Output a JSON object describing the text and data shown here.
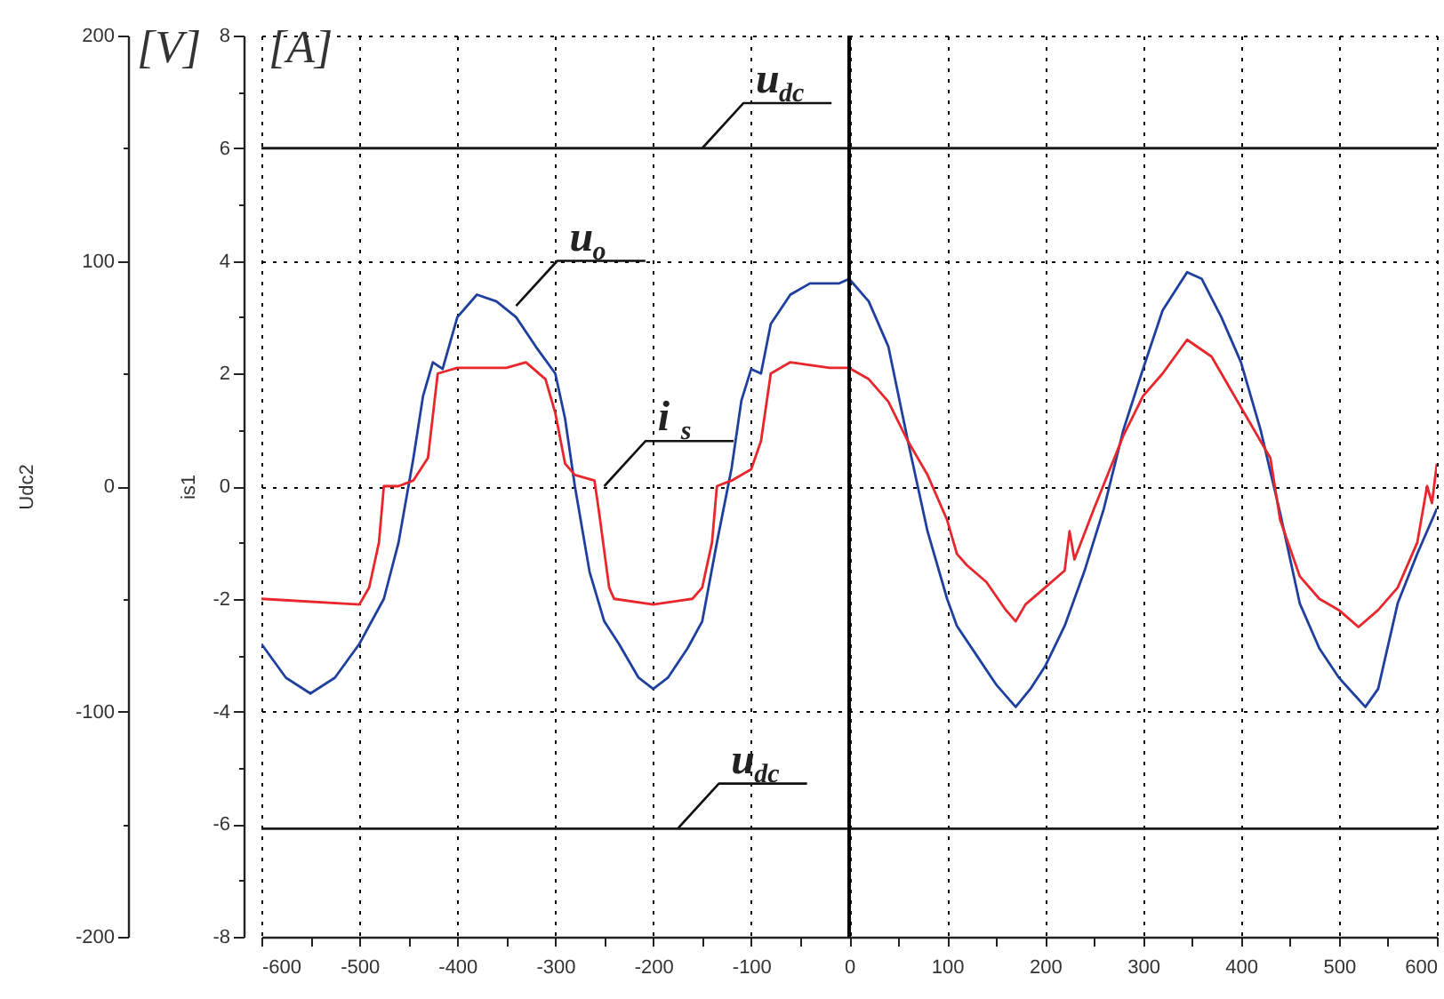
{
  "chart_data": {
    "type": "line",
    "xlim": [
      -600,
      600
    ],
    "xticks": [
      -600,
      {
        "value": -550,
        "label": null
      },
      -500,
      {
        "value": -450,
        "label": null
      },
      -400,
      {
        "value": -350,
        "label": null
      },
      -300,
      {
        "value": -250,
        "label": null
      },
      -200,
      {
        "value": -150,
        "label": null
      },
      -100,
      {
        "value": -50,
        "label": null
      },
      0,
      {
        "value": 50,
        "label": null
      },
      100,
      {
        "value": 150,
        "label": null
      },
      200,
      {
        "value": 250,
        "label": null
      },
      300,
      {
        "value": 350,
        "label": null
      },
      400,
      {
        "value": 450,
        "label": null
      },
      500,
      {
        "value": 550,
        "label": null
      },
      600
    ],
    "ylim": [
      -200,
      200
    ],
    "yticks": [
      -200,
      {
        "value": -150,
        "label": null
      },
      -100,
      {
        "value": -50,
        "label": null
      },
      0,
      {
        "value": 50,
        "label": null
      },
      100,
      {
        "value": 150,
        "label": null
      },
      200
    ],
    "ylabel": "Udc2",
    "y2lim": [
      -8,
      8
    ],
    "y2ticks": [
      -8,
      {
        "value": -7,
        "label": null
      },
      -6,
      {
        "value": -5,
        "label": null
      },
      -4,
      {
        "value": -3,
        "label": null
      },
      -2,
      {
        "value": -1,
        "label": null
      },
      0,
      {
        "value": 1,
        "label": null
      },
      2,
      {
        "value": 3,
        "label": null
      },
      4,
      {
        "value": 5,
        "label": null
      },
      6,
      {
        "value": 7,
        "label": null
      },
      8
    ],
    "y2label": "is1",
    "grid": true,
    "ref_lines": [
      {
        "axis": "x",
        "value": 0,
        "color": "#000000"
      }
    ],
    "annotations": [
      "[V]",
      "[A]",
      {
        "text": "u$_{dc}$",
        "x": -150,
        "y": 150
      },
      {
        "text": "u$_{o}$",
        "x": -340,
        "y": 80
      },
      {
        "text": "i$_{s}$",
        "x": -250,
        "y": 0
      },
      {
        "text": "u$_{dc}$",
        "x": -175,
        "y": -152
      }
    ],
    "series": [
      {
        "color": "#1a1a1a",
        "x": [
          -600,
          -500,
          -400,
          -300,
          -200,
          -100,
          0,
          100,
          200,
          300,
          400,
          500,
          600
        ],
        "values": [
          150,
          150,
          150,
          150,
          150,
          150,
          150,
          150,
          150,
          150,
          150,
          150,
          150
        ]
      },
      {
        "color": "#1a1a1a",
        "x": [
          -600,
          -500,
          -400,
          -300,
          -200,
          -100,
          0,
          100,
          200,
          300,
          400,
          500,
          600
        ],
        "values": [
          -152,
          -152,
          -152,
          -152,
          -152,
          -152,
          -152,
          -152,
          -152,
          -152,
          -152,
          -152,
          -152
        ]
      },
      {
        "color": "#1f3f9f",
        "x": [
          -600,
          -575,
          -550,
          -525,
          -500,
          -475,
          -460,
          -445,
          -435,
          -425,
          -415,
          -400,
          -380,
          -360,
          -340,
          -320,
          -300,
          -290,
          -280,
          -265,
          -250,
          -235,
          -215,
          -200,
          -185,
          -165,
          -150,
          -135,
          -120,
          -110,
          -100,
          -90,
          -80,
          -60,
          -40,
          -10,
          0,
          20,
          40,
          60,
          80,
          100,
          110,
          130,
          150,
          170,
          185,
          200,
          220,
          240,
          260,
          280,
          300,
          320,
          345,
          360,
          380,
          400,
          420,
          440,
          460,
          480,
          500,
          527,
          540,
          560,
          580,
          600
        ],
        "values": [
          -70,
          -85,
          -92,
          -85,
          -70,
          -50,
          -25,
          12,
          40,
          55,
          52,
          75,
          85,
          82,
          75,
          62,
          50,
          30,
          0,
          -38,
          -60,
          -70,
          -85,
          -90,
          -85,
          -72,
          -60,
          -25,
          8,
          38,
          52,
          50,
          72,
          85,
          90,
          90,
          92,
          82,
          62,
          20,
          -20,
          -50,
          -62,
          -75,
          -88,
          -98,
          -90,
          -80,
          -62,
          -38,
          -10,
          25,
          52,
          78,
          95,
          92,
          75,
          55,
          25,
          -12,
          -52,
          -72,
          -85,
          -98,
          -90,
          -52,
          -30,
          -10
        ]
      },
      {
        "color": "#e8262b",
        "axis": "y2",
        "x": [
          -600,
          -500,
          -490,
          -480,
          -475,
          -460,
          -445,
          -430,
          -420,
          -400,
          -350,
          -330,
          -310,
          -300,
          -290,
          -280,
          -260,
          -255,
          -245,
          -240,
          -200,
          -160,
          -150,
          -140,
          -135,
          -120,
          -100,
          -90,
          -80,
          -60,
          -20,
          0,
          20,
          40,
          60,
          80,
          100,
          110,
          120,
          140,
          160,
          170,
          180,
          200,
          220,
          225,
          230,
          250,
          280,
          300,
          320,
          345,
          370,
          400,
          430,
          440,
          460,
          480,
          500,
          520,
          540,
          560,
          580,
          590,
          595,
          600
        ],
        "values": [
          -2.0,
          -2.1,
          -1.8,
          -1.0,
          0,
          0,
          0.1,
          0.5,
          2.0,
          2.1,
          2.1,
          2.2,
          1.9,
          1.3,
          0.4,
          0.2,
          0.1,
          -0.5,
          -1.8,
          -2.0,
          -2.1,
          -2.0,
          -1.8,
          -1.0,
          0,
          0.1,
          0.3,
          0.8,
          2.0,
          2.2,
          2.1,
          2.1,
          1.9,
          1.5,
          0.8,
          0.2,
          -0.6,
          -1.2,
          -1.4,
          -1.7,
          -2.2,
          -2.4,
          -2.1,
          -1.8,
          -1.5,
          -0.8,
          -1.3,
          -0.4,
          0.9,
          1.6,
          2.0,
          2.6,
          2.3,
          1.4,
          0.5,
          -0.6,
          -1.6,
          -2.0,
          -2.2,
          -2.5,
          -2.2,
          -1.8,
          -1.0,
          0.0,
          -0.3,
          0.4
        ]
      }
    ]
  }
}
